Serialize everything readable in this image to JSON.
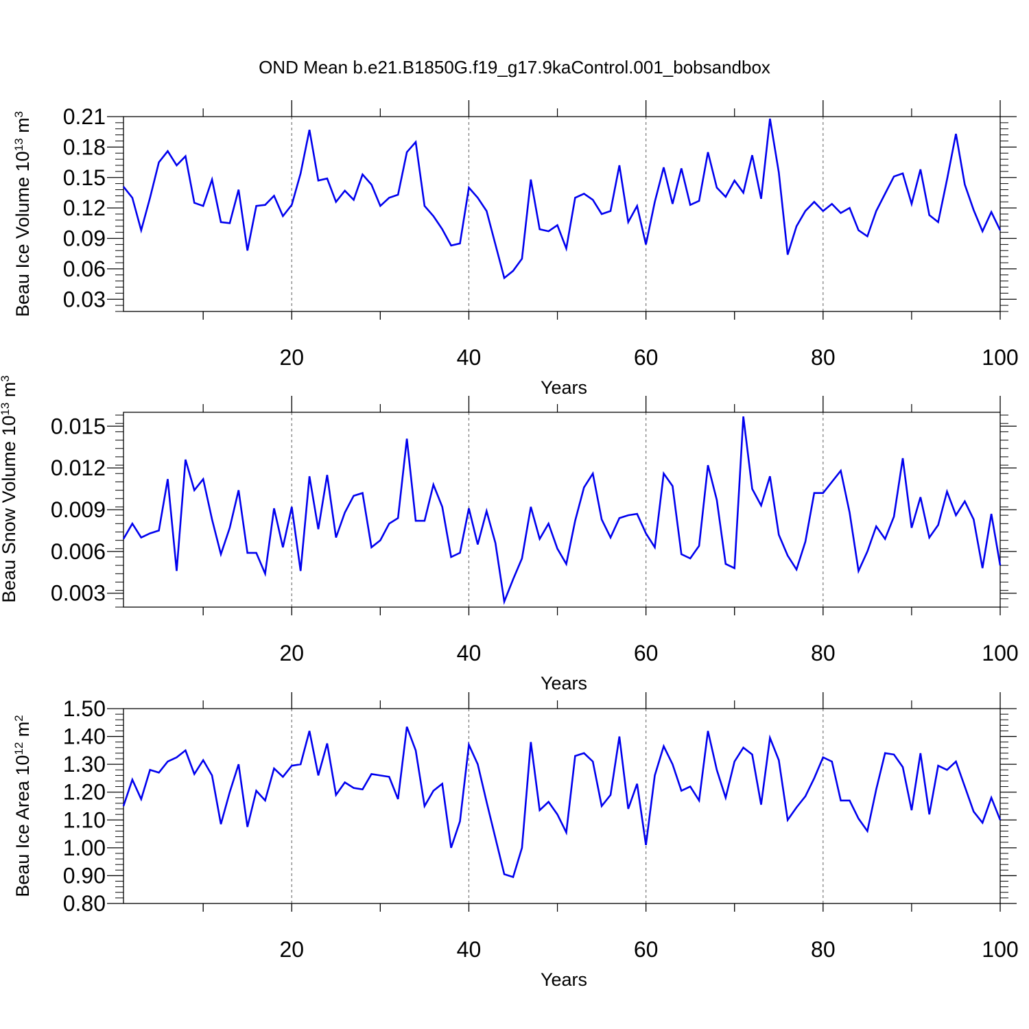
{
  "figure_title": "OND Mean b.e21.B1850G.f19_g17.9kaControl.001_bobsandbox",
  "line_color": "#0000ee",
  "chart_data": [
    {
      "type": "line",
      "title": "OND Mean b.e21.B1850G.f19_g17.9kaControl.001_bobsandbox",
      "xlabel": "Years",
      "ylabel": {
        "base": "Beau Ice Volume 10",
        "sup1": "13",
        "mid": " m",
        "sup2": "3"
      },
      "xlim": [
        1,
        100
      ],
      "ylim": [
        0.018,
        0.21
      ],
      "xticks": [
        20,
        40,
        60,
        80,
        100
      ],
      "xtick_labels": [
        "20",
        "40",
        "60",
        "80",
        "100"
      ],
      "yticks": [
        0.03,
        0.06,
        0.09,
        0.12,
        0.15,
        0.18,
        0.21
      ],
      "ytick_labels": [
        "0.03",
        "0.06",
        "0.09",
        "0.12",
        "0.15",
        "0.18",
        "0.21"
      ],
      "series": [
        {
          "name": "Beau Ice Volume",
          "x_start": 1,
          "x_step": 1,
          "values": [
            0.141,
            0.13,
            0.098,
            0.13,
            0.165,
            0.176,
            0.162,
            0.171,
            0.125,
            0.122,
            0.148,
            0.106,
            0.105,
            0.138,
            0.078,
            0.122,
            0.123,
            0.132,
            0.112,
            0.123,
            0.154,
            0.197,
            0.147,
            0.149,
            0.126,
            0.137,
            0.128,
            0.153,
            0.143,
            0.122,
            0.13,
            0.133,
            0.175,
            0.185,
            0.122,
            0.112,
            0.099,
            0.083,
            0.085,
            0.14,
            0.13,
            0.117,
            0.084,
            0.051,
            0.058,
            0.07,
            0.148,
            0.099,
            0.097,
            0.103,
            0.08,
            0.13,
            0.134,
            0.128,
            0.114,
            0.117,
            0.162,
            0.106,
            0.122,
            0.084,
            0.126,
            0.16,
            0.124,
            0.159,
            0.123,
            0.127,
            0.175,
            0.14,
            0.131,
            0.147,
            0.135,
            0.172,
            0.129,
            0.208,
            0.155,
            0.074,
            0.102,
            0.117,
            0.126,
            0.117,
            0.124,
            0.115,
            0.12,
            0.098,
            0.092,
            0.117,
            0.134,
            0.151,
            0.154,
            0.124,
            0.158,
            0.113,
            0.106,
            0.148,
            0.193,
            0.143,
            0.118,
            0.097,
            0.116,
            0.098
          ]
        }
      ]
    },
    {
      "type": "line",
      "xlabel": "Years",
      "ylabel": {
        "base": "Beau Snow Volume 10",
        "sup1": "13",
        "mid": " m",
        "sup2": "3"
      },
      "xlim": [
        1,
        100
      ],
      "ylim": [
        0.002,
        0.016
      ],
      "xticks": [
        20,
        40,
        60,
        80,
        100
      ],
      "xtick_labels": [
        "20",
        "40",
        "60",
        "80",
        "100"
      ],
      "yticks": [
        0.003,
        0.006,
        0.009,
        0.012,
        0.015
      ],
      "ytick_labels": [
        "0.003",
        "0.006",
        "0.009",
        "0.012",
        "0.015"
      ],
      "series": [
        {
          "name": "Beau Snow Volume",
          "x_start": 1,
          "x_step": 1,
          "values": [
            0.0069,
            0.008,
            0.007,
            0.0073,
            0.0075,
            0.0112,
            0.0046,
            0.0126,
            0.0104,
            0.0112,
            0.0083,
            0.0058,
            0.0077,
            0.0104,
            0.0059,
            0.0059,
            0.0044,
            0.0091,
            0.0063,
            0.0092,
            0.0046,
            0.0114,
            0.0076,
            0.0115,
            0.007,
            0.0088,
            0.01,
            0.0102,
            0.0063,
            0.0068,
            0.008,
            0.0084,
            0.0141,
            0.0082,
            0.0082,
            0.0108,
            0.0092,
            0.0056,
            0.0059,
            0.0091,
            0.0065,
            0.0089,
            0.0066,
            0.0024,
            0.004,
            0.0055,
            0.0092,
            0.0069,
            0.008,
            0.0062,
            0.0051,
            0.0082,
            0.0106,
            0.0116,
            0.0083,
            0.007,
            0.0084,
            0.0086,
            0.0087,
            0.0073,
            0.0063,
            0.0116,
            0.0107,
            0.0058,
            0.0055,
            0.0064,
            0.0122,
            0.0097,
            0.0051,
            0.0048,
            0.0157,
            0.0105,
            0.0093,
            0.0114,
            0.0072,
            0.0057,
            0.0047,
            0.0067,
            0.0102,
            0.0102,
            0.011,
            0.0118,
            0.0088,
            0.0046,
            0.006,
            0.0078,
            0.0069,
            0.0085,
            0.0127,
            0.0077,
            0.0099,
            0.007,
            0.0079,
            0.0103,
            0.0086,
            0.0096,
            0.0083,
            0.0048,
            0.0087,
            0.005
          ]
        }
      ]
    },
    {
      "type": "line",
      "xlabel": "Years",
      "ylabel": {
        "base": "Beau Ice Area 10",
        "sup1": "12",
        "mid": " m",
        "sup2": "2"
      },
      "xlim": [
        1,
        100
      ],
      "ylim": [
        0.8,
        1.5
      ],
      "xticks": [
        20,
        40,
        60,
        80,
        100
      ],
      "xtick_labels": [
        "20",
        "40",
        "60",
        "80",
        "100"
      ],
      "yticks": [
        0.8,
        0.9,
        1.0,
        1.1,
        1.2,
        1.3,
        1.4,
        1.5
      ],
      "ytick_labels": [
        "0.80",
        "0.90",
        "1.00",
        "1.10",
        "1.20",
        "1.30",
        "1.40",
        "1.50"
      ],
      "series": [
        {
          "name": "Beau Ice Area",
          "x_start": 1,
          "x_step": 1,
          "values": [
            1.15,
            1.245,
            1.175,
            1.28,
            1.27,
            1.31,
            1.325,
            1.35,
            1.265,
            1.315,
            1.26,
            1.085,
            1.2,
            1.3,
            1.075,
            1.205,
            1.17,
            1.285,
            1.255,
            1.295,
            1.3,
            1.42,
            1.26,
            1.375,
            1.19,
            1.235,
            1.215,
            1.21,
            1.265,
            1.26,
            1.255,
            1.175,
            1.435,
            1.35,
            1.15,
            1.205,
            1.23,
            1.0,
            1.095,
            1.37,
            1.3,
            1.165,
            1.035,
            0.905,
            0.895,
            1.0,
            1.38,
            1.135,
            1.165,
            1.12,
            1.055,
            1.33,
            1.34,
            1.31,
            1.15,
            1.19,
            1.4,
            1.14,
            1.23,
            1.01,
            1.26,
            1.365,
            1.3,
            1.205,
            1.22,
            1.17,
            1.42,
            1.28,
            1.18,
            1.31,
            1.36,
            1.335,
            1.155,
            1.395,
            1.315,
            1.1,
            1.145,
            1.185,
            1.25,
            1.325,
            1.31,
            1.17,
            1.17,
            1.105,
            1.06,
            1.21,
            1.34,
            1.335,
            1.29,
            1.135,
            1.34,
            1.12,
            1.295,
            1.28,
            1.31,
            1.22,
            1.13,
            1.09,
            1.18,
            1.1
          ]
        }
      ]
    }
  ]
}
